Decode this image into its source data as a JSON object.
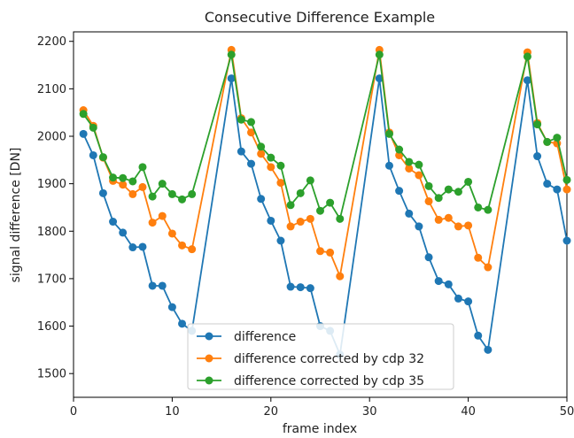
{
  "chart_data": {
    "type": "line",
    "title": "Consecutive Difference Example",
    "xlabel": "frame index",
    "ylabel": "signal difference [DN]",
    "xlim": [
      0,
      50
    ],
    "ylim": [
      1450,
      2220
    ],
    "xticks": [
      0,
      10,
      20,
      30,
      40,
      50
    ],
    "yticks": [
      1500,
      1600,
      1700,
      1800,
      1900,
      2000,
      2100,
      2200
    ],
    "grid": false,
    "legend_position": "lower center",
    "series": [
      {
        "name": "difference",
        "color": "#1f77b4",
        "x": [
          1,
          2,
          3,
          4,
          5,
          6,
          7,
          8,
          9,
          10,
          11,
          12,
          16,
          17,
          18,
          19,
          20,
          21,
          22,
          23,
          24,
          25,
          26,
          27,
          31,
          32,
          33,
          34,
          35,
          36,
          37,
          38,
          39,
          40,
          41,
          42,
          46,
          47,
          48,
          49,
          50
        ],
        "y": [
          2005,
          1960,
          1880,
          1820,
          1797,
          1766,
          1767,
          1685,
          1685,
          1640,
          1605,
          1590,
          2122,
          1968,
          1942,
          1868,
          1822,
          1780,
          1683,
          1682,
          1680,
          1600,
          1590,
          1540,
          2122,
          1938,
          1885,
          1837,
          1810,
          1745,
          1695,
          1688,
          1658,
          1652,
          1580,
          1550,
          2118,
          1958,
          1900,
          1888,
          1780
        ]
      },
      {
        "name": "difference corrected by cdp 32",
        "color": "#ff7f0e",
        "x": [
          1,
          2,
          3,
          4,
          5,
          6,
          7,
          8,
          9,
          10,
          11,
          12,
          16,
          17,
          18,
          19,
          20,
          21,
          22,
          23,
          24,
          25,
          26,
          27,
          31,
          32,
          33,
          34,
          35,
          36,
          37,
          38,
          39,
          40,
          41,
          42,
          46,
          47,
          48,
          49,
          50
        ],
        "y": [
          2055,
          2022,
          1955,
          1906,
          1898,
          1878,
          1893,
          1818,
          1832,
          1795,
          1770,
          1762,
          2182,
          2038,
          2008,
          1963,
          1935,
          1902,
          1810,
          1820,
          1826,
          1758,
          1755,
          1705,
          2182,
          2008,
          1960,
          1932,
          1918,
          1863,
          1824,
          1828,
          1810,
          1812,
          1744,
          1724,
          2177,
          2028,
          1988,
          1985,
          1888
        ]
      },
      {
        "name": "difference corrected by cdp 35",
        "color": "#2ca02c",
        "x": [
          1,
          2,
          3,
          4,
          5,
          6,
          7,
          8,
          9,
          10,
          11,
          12,
          16,
          17,
          18,
          19,
          20,
          21,
          22,
          23,
          24,
          25,
          26,
          27,
          31,
          32,
          33,
          34,
          35,
          36,
          37,
          38,
          39,
          40,
          41,
          42,
          46,
          47,
          48,
          49,
          50
        ],
        "y": [
          2047,
          2018,
          1956,
          1913,
          1912,
          1905,
          1935,
          1873,
          1900,
          1878,
          1867,
          1878,
          2172,
          2035,
          2030,
          1978,
          1955,
          1938,
          1855,
          1880,
          1907,
          1843,
          1860,
          1826,
          2172,
          2005,
          1972,
          1946,
          1940,
          1895,
          1870,
          1888,
          1883,
          1904,
          1850,
          1845,
          2168,
          2025,
          1988,
          1997,
          1908
        ]
      }
    ]
  }
}
